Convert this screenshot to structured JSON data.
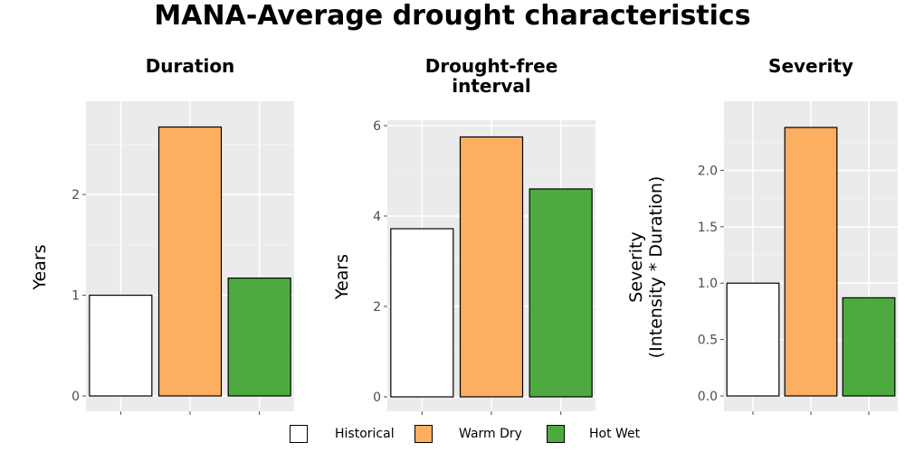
{
  "title": "MANA-Average drought characteristics",
  "colors": {
    "Historical": "#ffffff",
    "Warm Dry": "#fdae61",
    "Hot Wet": "#4daa3f"
  },
  "legend": {
    "entries": [
      "Historical",
      "Warm Dry",
      "Hot Wet"
    ]
  },
  "chart_data": [
    {
      "type": "bar",
      "title": "Duration",
      "ylabel": "Years",
      "categories": [
        "Historical",
        "Warm Dry",
        "Hot Wet"
      ],
      "values": [
        1.0,
        2.67,
        1.17
      ],
      "ylim": [
        0,
        2.8
      ],
      "yticks": [
        0,
        1,
        2
      ],
      "yticklabels": [
        "0",
        "1",
        "2"
      ],
      "grid": true
    },
    {
      "type": "bar",
      "title": "Drought-free\ninterval",
      "ylabel": "Years",
      "categories": [
        "Historical",
        "Warm Dry",
        "Hot Wet"
      ],
      "values": [
        3.72,
        5.75,
        4.6
      ],
      "ylim": [
        0,
        6.0
      ],
      "yticks": [
        0,
        2,
        4,
        6
      ],
      "yticklabels": [
        "0",
        "2",
        "4",
        "6"
      ],
      "grid": true
    },
    {
      "type": "bar",
      "title": "Severity",
      "ylabel": "Severity\n(Intensity * Duration)",
      "categories": [
        "Historical",
        "Warm Dry",
        "Hot Wet"
      ],
      "values": [
        1.0,
        2.38,
        0.87
      ],
      "ylim": [
        0,
        2.5
      ],
      "yticks": [
        0,
        0.5,
        1.0,
        1.5,
        2.0
      ],
      "yticklabels": [
        "0.0",
        "0.5",
        "1.0",
        "1.5",
        "2.0"
      ],
      "grid": true
    }
  ]
}
